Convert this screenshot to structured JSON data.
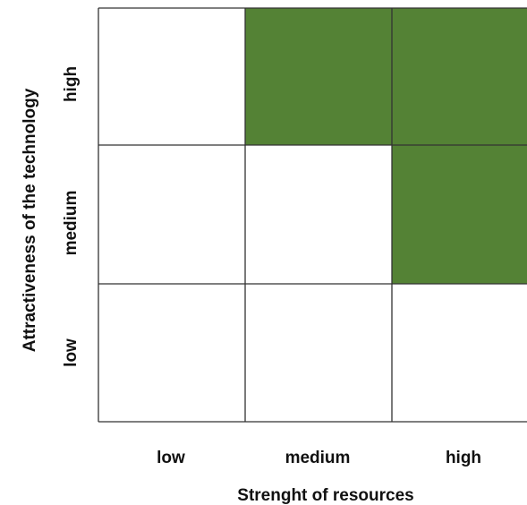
{
  "matrix": {
    "x_axis_label": "Strenght of resources",
    "y_axis_label": "Attractiveness of the technology",
    "x_categories": [
      "low",
      "medium",
      "high"
    ],
    "y_categories": [
      "high",
      "medium",
      "low"
    ],
    "highlight_color": "#548235",
    "empty_color": "#ffffff",
    "grid_color": "#333333",
    "cells": [
      [
        false,
        true,
        true
      ],
      [
        false,
        false,
        true
      ],
      [
        false,
        false,
        false
      ]
    ]
  }
}
